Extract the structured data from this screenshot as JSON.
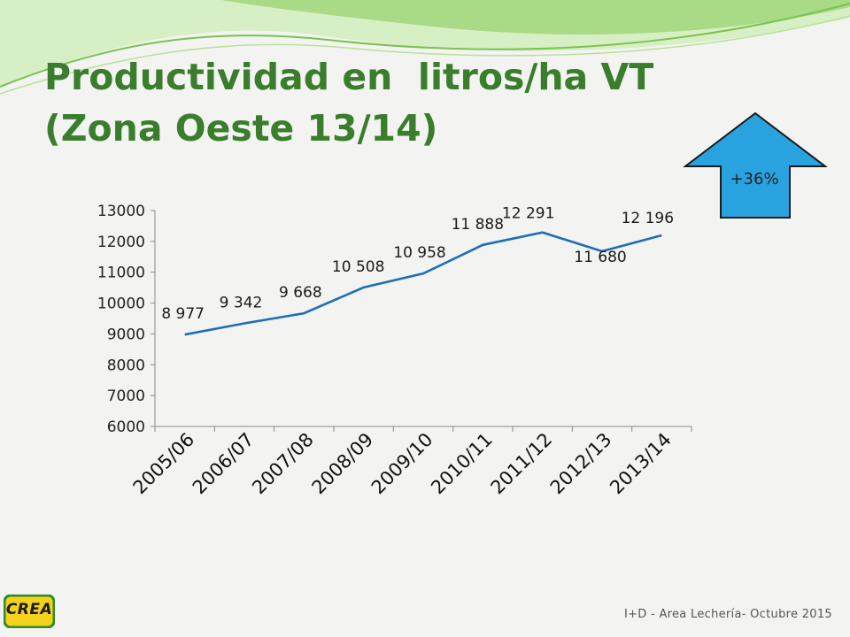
{
  "slide": {
    "title": "Productividad en  litros/ha VT\n(Zona Oeste 13/14)",
    "badge": "+36%",
    "footer": "I+D - Area Lechería- Octubre 2015",
    "logo": "CREA"
  },
  "colors": {
    "title": "#3a7d2c",
    "line": "#1f6eb5",
    "arrow_fill": "#29a3e0",
    "background": "#f3f3f1"
  },
  "chart_data": {
    "type": "line",
    "categories": [
      "2005/06",
      "2006/07",
      "2007/08",
      "2008/09",
      "2009/10",
      "2010/11",
      "2011/12",
      "2012/13",
      "2013/14"
    ],
    "values": [
      8977,
      9342,
      9668,
      10508,
      10958,
      11888,
      12291,
      11680,
      12196
    ],
    "data_labels": [
      "8 977",
      "9 342",
      "9 668",
      "10 508",
      "10 958",
      "11 888",
      "12 291",
      "11 680",
      "12 196"
    ],
    "yticks": [
      "6000",
      "7000",
      "8000",
      "9000",
      "10000",
      "11000",
      "12000",
      "13000"
    ],
    "ylim": [
      6000,
      13000
    ],
    "grid": false,
    "legend": false
  }
}
